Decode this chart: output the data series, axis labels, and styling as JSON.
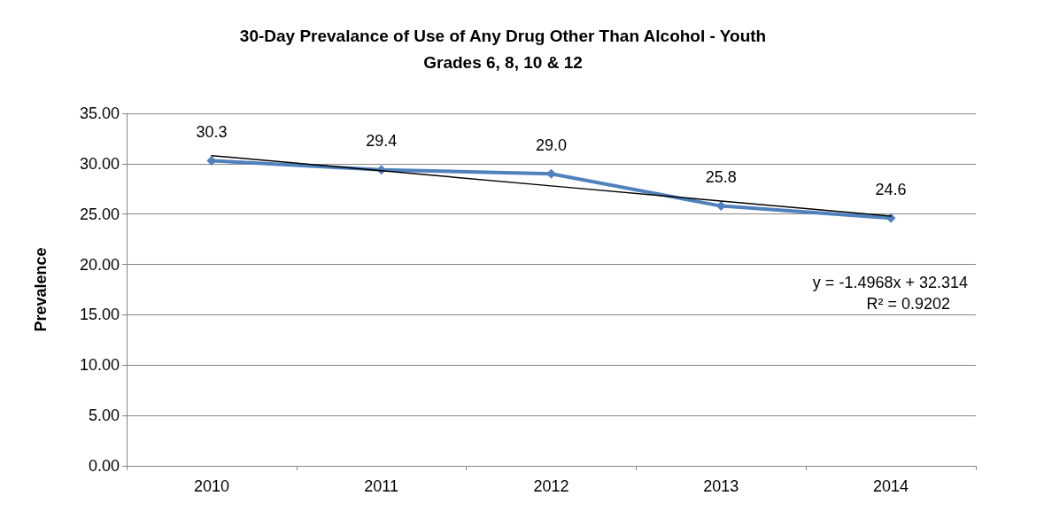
{
  "chart_data": {
    "type": "line",
    "title": "30-Day Prevalance of Use of Any Drug Other Than Alcohol - Youth\nGrades 6, 8, 10 & 12",
    "ylabel": "Prevalence",
    "categories": [
      "2010",
      "2011",
      "2012",
      "2013",
      "2014"
    ],
    "series": [
      {
        "color": "#4f81bd",
        "values": [
          30.3,
          29.4,
          29.0,
          25.8,
          24.6
        ],
        "value_labels": [
          "30.3",
          "29.4",
          "29.0",
          "25.8",
          "24.6"
        ],
        "marker": "diamond"
      },
      {
        "type": "line",
        "color": "#000000",
        "values": [
          30.8,
          29.3,
          27.8,
          26.3,
          24.8
        ],
        "marker": "none"
      }
    ],
    "ylim": [
      0,
      35
    ],
    "yticks": [
      {
        "value": 0,
        "label": "0.00"
      },
      {
        "value": 5,
        "label": "5.00"
      },
      {
        "value": 10,
        "label": "10.00"
      },
      {
        "value": 15,
        "label": "15.00"
      },
      {
        "value": 20,
        "label": "20.00"
      },
      {
        "value": 25,
        "label": "25.00"
      },
      {
        "value": 30,
        "label": "30.00"
      },
      {
        "value": 35,
        "label": "35.00"
      }
    ],
    "grid": "y",
    "annotations": [
      "y = -1.4968x + 32.314",
      "R² = 0.9202"
    ]
  }
}
